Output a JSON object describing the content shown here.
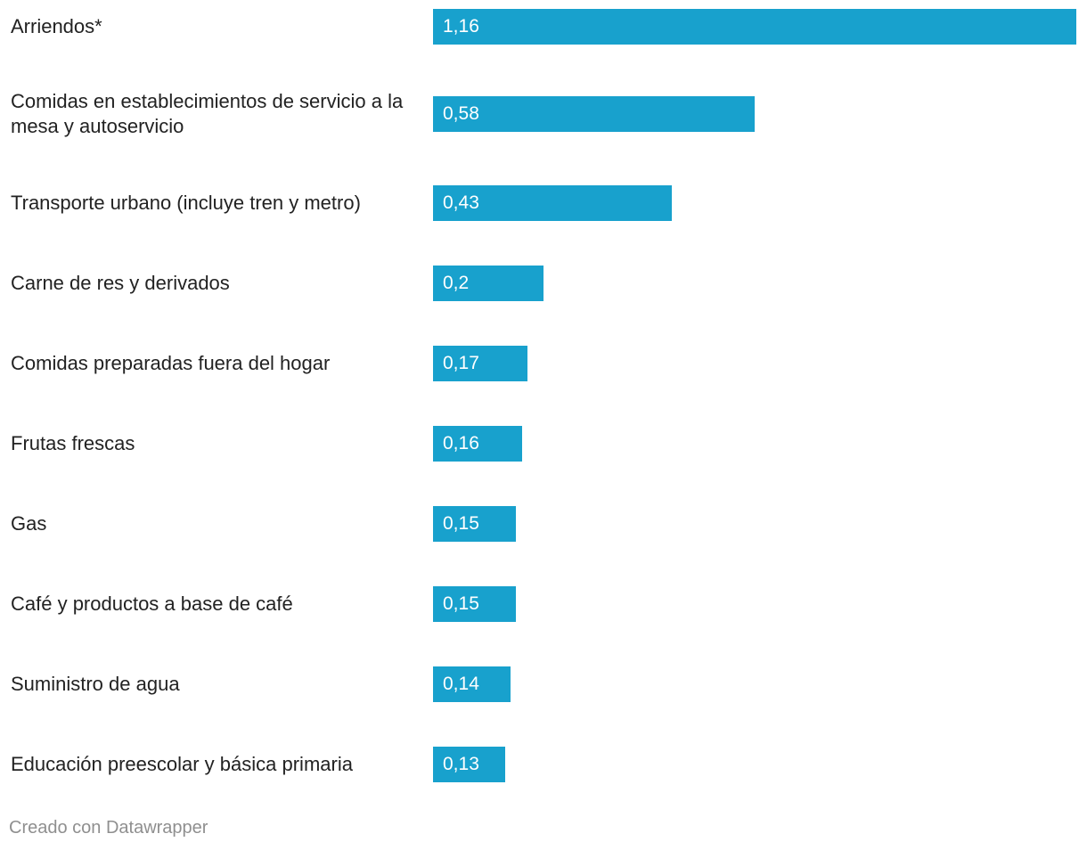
{
  "chart_data": {
    "type": "bar",
    "orientation": "horizontal",
    "categories": [
      "Arriendos*",
      "Comidas en establecimientos de servicio a la mesa y autoservicio",
      "Transporte urbano (incluye tren y metro)",
      "Carne de res y derivados",
      "Comidas preparadas fuera del hogar",
      "Frutas frescas",
      "Gas",
      "Café y productos a base de café",
      "Suministro de agua",
      "Educación preescolar y básica primaria"
    ],
    "values": [
      1.16,
      0.58,
      0.43,
      0.2,
      0.17,
      0.16,
      0.15,
      0.15,
      0.14,
      0.13
    ],
    "value_labels": [
      "1,16",
      "0,58",
      "0,43",
      "0,2",
      "0,17",
      "0,16",
      "0,15",
      "0,15",
      "0,14",
      "0,13"
    ],
    "xlim": [
      0,
      1.16
    ],
    "grid": false,
    "legend": "none",
    "bar_color": "#18a1cd",
    "value_label_color": "#ffffff",
    "value_label_placement": "inside-left"
  },
  "credit": "Creado con Datawrapper",
  "colors": {
    "text": "#222222",
    "credit": "#8f8f8f",
    "background": "#ffffff"
  }
}
